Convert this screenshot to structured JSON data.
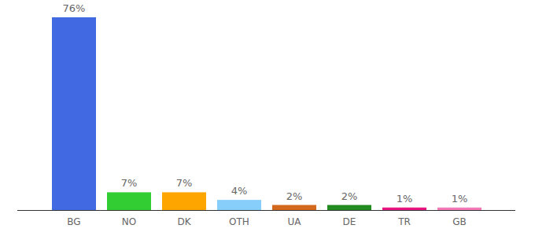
{
  "chart_data": {
    "type": "bar",
    "categories": [
      "BG",
      "NO",
      "DK",
      "OTH",
      "UA",
      "DE",
      "TR",
      "GB"
    ],
    "values": [
      76,
      7,
      7,
      4,
      2,
      2,
      1,
      1
    ],
    "value_labels": [
      "76%",
      "7%",
      "7%",
      "4%",
      "2%",
      "2%",
      "1%",
      "1%"
    ],
    "colors": [
      "#4169e1",
      "#32cd32",
      "#ffa500",
      "#87cefa",
      "#d2691e",
      "#228b22",
      "#e6157f",
      "#f27ab8"
    ],
    "ylim": [
      0,
      76
    ],
    "data_labels": true,
    "tick_labels": "x",
    "grid": false
  }
}
